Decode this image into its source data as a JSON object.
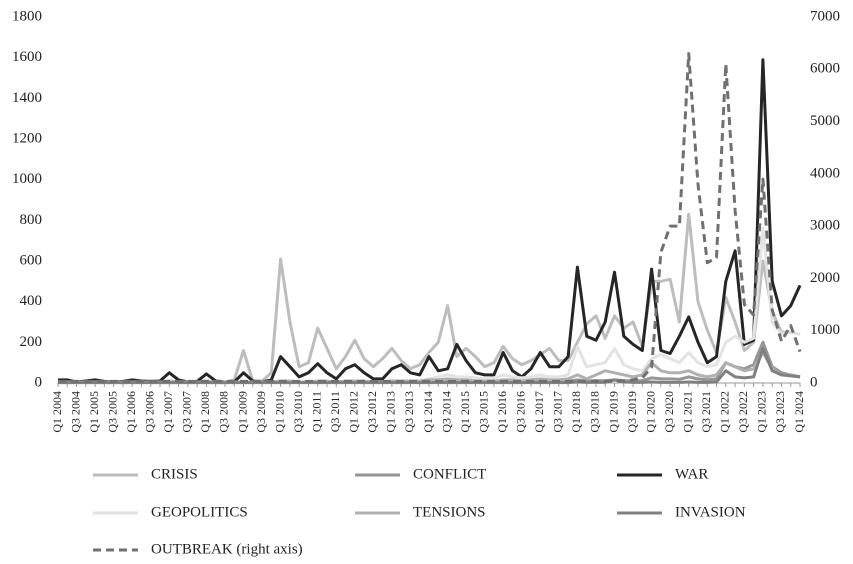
{
  "chart_data": {
    "type": "line",
    "categories": [
      "Q1 2004",
      null,
      "Q3 2004",
      null,
      "Q1 2005",
      null,
      "Q3 2005",
      null,
      "Q1 2006",
      null,
      "Q3 2006",
      null,
      "Q1 2007",
      null,
      "Q3 2007",
      null,
      "Q1 2008",
      null,
      "Q3 2008",
      null,
      "Q1 2009",
      null,
      "Q3 2009",
      null,
      "Q1 2010",
      null,
      "Q3 2010",
      null,
      "Q1 2011",
      null,
      "Q3 2011",
      null,
      "Q1 2012",
      null,
      "Q3 2012",
      null,
      "Q1 2013",
      null,
      "Q3 2013",
      null,
      "Q1 2014",
      null,
      "Q3 2014",
      null,
      "Q1 2015",
      null,
      "Q3 2015",
      null,
      "Q1 2016",
      null,
      "Q3 2016",
      null,
      "Q1 2017",
      null,
      "Q3 2017",
      null,
      "Q1 2018",
      null,
      "Q3 2018",
      null,
      "Q1 2019",
      null,
      "Q3 2019",
      null,
      "Q1 2020",
      null,
      "Q3 2020",
      null,
      "Q1 2021",
      null,
      "Q3 2021",
      null,
      "Q1 2022",
      null,
      "Q3 2022",
      null,
      "Q1 2023",
      null,
      "Q3 2023",
      null,
      "Q1 2024"
    ],
    "series": [
      {
        "name": "CRISIS",
        "color": "#bdbdbd",
        "values": [
          5,
          5,
          5,
          5,
          5,
          5,
          5,
          5,
          5,
          5,
          5,
          5,
          10,
          5,
          5,
          5,
          10,
          5,
          5,
          15,
          160,
          10,
          10,
          50,
          610,
          300,
          80,
          100,
          270,
          170,
          70,
          130,
          210,
          120,
          80,
          120,
          170,
          110,
          70,
          90,
          150,
          200,
          380,
          130,
          170,
          130,
          80,
          100,
          180,
          120,
          90,
          110,
          140,
          170,
          110,
          110,
          200,
          290,
          330,
          220,
          330,
          270,
          300,
          180,
          500,
          500,
          510,
          300,
          830,
          400,
          260,
          150,
          420,
          300,
          160,
          200,
          600,
          350,
          250,
          250,
          240
        ]
      },
      {
        "name": "CONFLICT",
        "color": "#969696",
        "values": [
          3,
          3,
          3,
          3,
          3,
          3,
          3,
          3,
          3,
          3,
          3,
          3,
          3,
          3,
          3,
          3,
          3,
          3,
          3,
          3,
          3,
          3,
          3,
          3,
          5,
          5,
          3,
          3,
          5,
          5,
          5,
          5,
          5,
          5,
          5,
          5,
          5,
          5,
          5,
          5,
          8,
          8,
          10,
          8,
          8,
          8,
          8,
          8,
          10,
          8,
          8,
          8,
          10,
          8,
          8,
          8,
          15,
          10,
          12,
          12,
          15,
          12,
          10,
          12,
          25,
          20,
          20,
          18,
          30,
          20,
          15,
          20,
          100,
          80,
          70,
          90,
          200,
          80,
          50,
          40,
          30
        ]
      },
      {
        "name": "WAR",
        "color": "#262626",
        "values": [
          15,
          15,
          5,
          10,
          15,
          8,
          5,
          8,
          15,
          10,
          8,
          10,
          50,
          15,
          5,
          8,
          45,
          10,
          5,
          5,
          50,
          10,
          5,
          15,
          130,
          80,
          30,
          50,
          95,
          50,
          20,
          70,
          90,
          50,
          20,
          20,
          70,
          90,
          50,
          40,
          130,
          60,
          70,
          190,
          110,
          50,
          40,
          40,
          150,
          60,
          30,
          70,
          150,
          80,
          80,
          130,
          570,
          230,
          210,
          300,
          545,
          230,
          190,
          160,
          560,
          160,
          145,
          230,
          325,
          200,
          100,
          130,
          500,
          650,
          190,
          210,
          1590,
          500,
          330,
          380,
          480
        ]
      },
      {
        "name": "GEOPOLITICS",
        "color": "#e3e3e3",
        "values": [
          2,
          2,
          2,
          2,
          2,
          2,
          2,
          2,
          2,
          2,
          2,
          2,
          2,
          2,
          2,
          2,
          2,
          2,
          2,
          2,
          5,
          5,
          5,
          5,
          10,
          5,
          5,
          5,
          10,
          5,
          5,
          5,
          10,
          5,
          5,
          5,
          10,
          10,
          10,
          10,
          20,
          30,
          40,
          30,
          30,
          25,
          20,
          25,
          40,
          30,
          25,
          30,
          40,
          30,
          30,
          40,
          180,
          80,
          90,
          100,
          170,
          90,
          70,
          60,
          120,
          140,
          120,
          100,
          150,
          100,
          80,
          90,
          200,
          230,
          200,
          220,
          760,
          300,
          240,
          250,
          240
        ]
      },
      {
        "name": "TENSIONS",
        "color": "#b0b0b0",
        "values": [
          5,
          5,
          5,
          5,
          5,
          5,
          5,
          5,
          5,
          5,
          5,
          5,
          5,
          5,
          5,
          5,
          5,
          5,
          5,
          5,
          5,
          5,
          5,
          5,
          10,
          10,
          5,
          5,
          10,
          10,
          5,
          10,
          10,
          10,
          5,
          5,
          10,
          10,
          10,
          10,
          15,
          15,
          20,
          15,
          15,
          10,
          10,
          10,
          15,
          15,
          10,
          15,
          20,
          15,
          15,
          20,
          40,
          20,
          40,
          60,
          50,
          40,
          30,
          40,
          100,
          60,
          50,
          50,
          60,
          40,
          30,
          40,
          100,
          80,
          60,
          70,
          150,
          70,
          40,
          40,
          30
        ]
      },
      {
        "name": "INVASION",
        "color": "#808080",
        "values": [
          2,
          2,
          2,
          2,
          2,
          2,
          2,
          2,
          2,
          2,
          2,
          2,
          2,
          2,
          2,
          2,
          2,
          2,
          2,
          2,
          2,
          2,
          2,
          2,
          2,
          2,
          2,
          2,
          2,
          2,
          2,
          2,
          2,
          2,
          2,
          2,
          2,
          2,
          2,
          2,
          2,
          2,
          2,
          2,
          2,
          2,
          2,
          2,
          2,
          2,
          2,
          2,
          2,
          2,
          2,
          2,
          5,
          3,
          3,
          3,
          15,
          5,
          3,
          3,
          5,
          3,
          3,
          3,
          5,
          3,
          3,
          5,
          60,
          30,
          25,
          30,
          170,
          60,
          40,
          35,
          30
        ]
      },
      {
        "name": "OUTBREAK (right axis)",
        "color": "#707070",
        "style": "dashed",
        "axis": "y2",
        "values": [
          30,
          30,
          30,
          30,
          30,
          30,
          30,
          30,
          30,
          30,
          30,
          30,
          30,
          30,
          30,
          30,
          30,
          30,
          30,
          30,
          30,
          30,
          30,
          30,
          30,
          30,
          30,
          30,
          30,
          30,
          30,
          30,
          30,
          30,
          30,
          30,
          30,
          30,
          30,
          30,
          30,
          30,
          30,
          30,
          30,
          30,
          30,
          30,
          30,
          30,
          30,
          30,
          30,
          30,
          30,
          30,
          30,
          30,
          30,
          30,
          40,
          40,
          60,
          100,
          300,
          2500,
          3000,
          3000,
          6300,
          3800,
          2300,
          2400,
          6100,
          3300,
          1500,
          1300,
          3900,
          1400,
          800,
          1100,
          600
        ]
      }
    ],
    "ylim": [
      0,
      1800
    ],
    "yticks": [
      0,
      200,
      400,
      600,
      800,
      1000,
      1200,
      1400,
      1600,
      1800
    ],
    "y2lim": [
      0,
      7000
    ],
    "y2ticks": [
      0,
      1000,
      2000,
      3000,
      4000,
      5000,
      6000,
      7000
    ],
    "grid": false,
    "legend": "bottom"
  }
}
